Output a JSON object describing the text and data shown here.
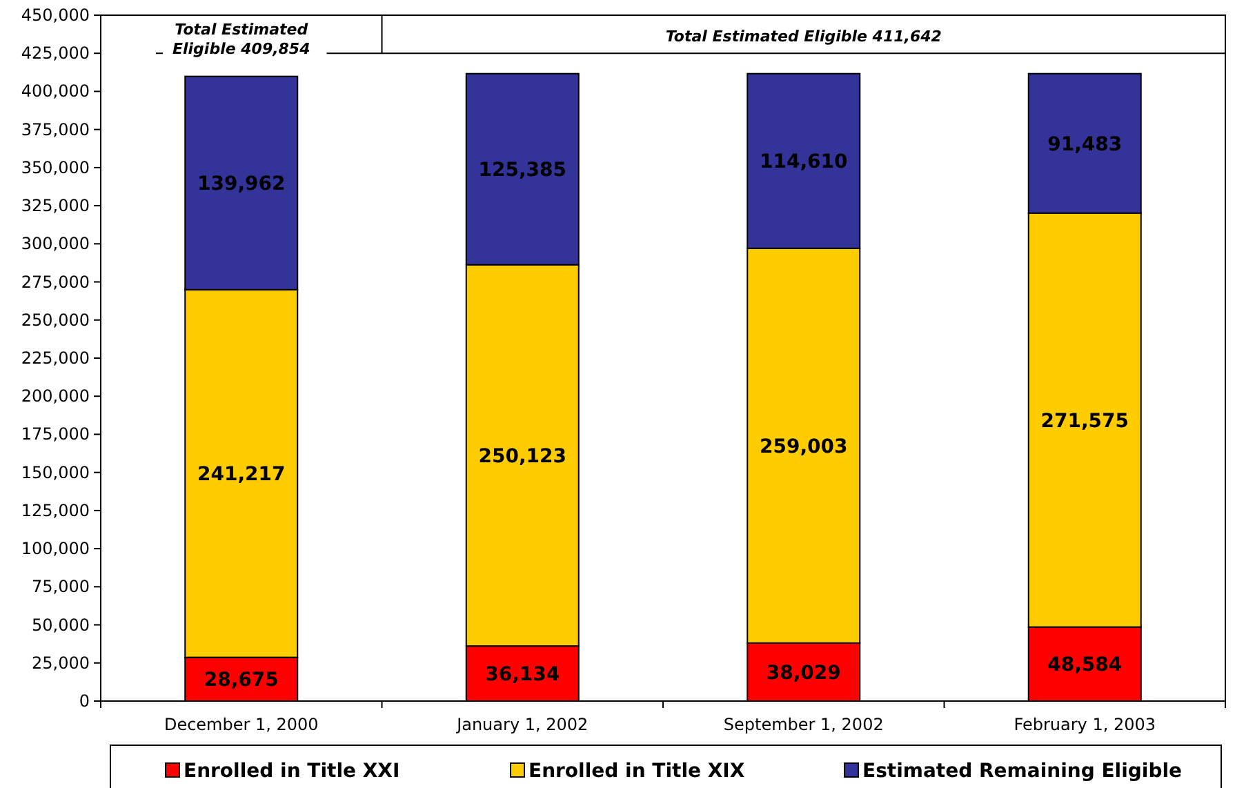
{
  "chart_data": {
    "type": "bar",
    "stacked": true,
    "categories": [
      "December 1, 2000",
      "January 1, 2002",
      "September 1, 2002",
      "February 1, 2003"
    ],
    "series": [
      {
        "name": "Enrolled in Title XXI",
        "color": "#ff0000",
        "values": [
          28675,
          36134,
          38029,
          48584
        ],
        "value_labels": [
          "28,675",
          "36,134",
          "38,029",
          "48,584"
        ]
      },
      {
        "name": "Enrolled in Title XIX",
        "color": "#ffcc00",
        "values": [
          241217,
          250123,
          259003,
          271575
        ],
        "value_labels": [
          "241,217",
          "250,123",
          "259,003",
          "271,575"
        ]
      },
      {
        "name": "Estimated Remaining Eligible",
        "color": "#333399",
        "values": [
          139962,
          125385,
          114610,
          91483
        ],
        "value_labels": [
          "139,962",
          "125,385",
          "114,610",
          "91,483"
        ]
      }
    ],
    "legend": "bottom",
    "ylim": [
      0,
      450000
    ],
    "yticks": [
      {
        "value": 0,
        "label": "0"
      },
      {
        "value": 25000,
        "label": "25,000"
      },
      {
        "value": 50000,
        "label": "50,000"
      },
      {
        "value": 75000,
        "label": "75,000"
      },
      {
        "value": 100000,
        "label": "100,000"
      },
      {
        "value": 125000,
        "label": "125,000"
      },
      {
        "value": 150000,
        "label": "150,000"
      },
      {
        "value": 175000,
        "label": "175,000"
      },
      {
        "value": 200000,
        "label": "200,000"
      },
      {
        "value": 225000,
        "label": "225,000"
      },
      {
        "value": 250000,
        "label": "250,000"
      },
      {
        "value": 275000,
        "label": "275,000"
      },
      {
        "value": 300000,
        "label": "300,000"
      },
      {
        "value": 325000,
        "label": "325,000"
      },
      {
        "value": 350000,
        "label": "350,000"
      },
      {
        "value": 375000,
        "label": "375,000"
      },
      {
        "value": 400000,
        "label": "400,000"
      },
      {
        "value": 425000,
        "label": "425,000"
      },
      {
        "value": 450000,
        "label": "450,000"
      }
    ],
    "annotations": [
      "Total Estimated Eligible 409,854",
      "Total Estimated Eligible 411,642"
    ]
  }
}
